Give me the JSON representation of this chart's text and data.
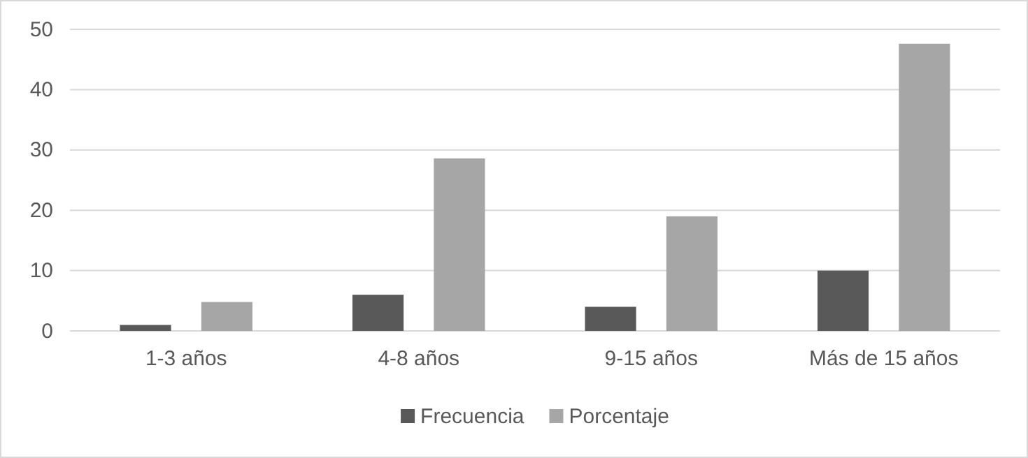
{
  "chart_data": {
    "type": "bar",
    "categories": [
      "1-3 años",
      "4-8 años",
      "9-15 años",
      "Más de 15 años"
    ],
    "series": [
      {
        "name": "Frecuencia",
        "color": "#595959",
        "values": [
          1,
          6,
          4,
          10
        ]
      },
      {
        "name": "Porcentaje",
        "color": "#a6a6a6",
        "values": [
          4.8,
          28.6,
          19,
          47.6
        ]
      }
    ],
    "ylim": [
      0,
      50
    ],
    "yticks": [
      0,
      10,
      20,
      30,
      40,
      50
    ],
    "grid": "y",
    "legend": "bottom"
  }
}
